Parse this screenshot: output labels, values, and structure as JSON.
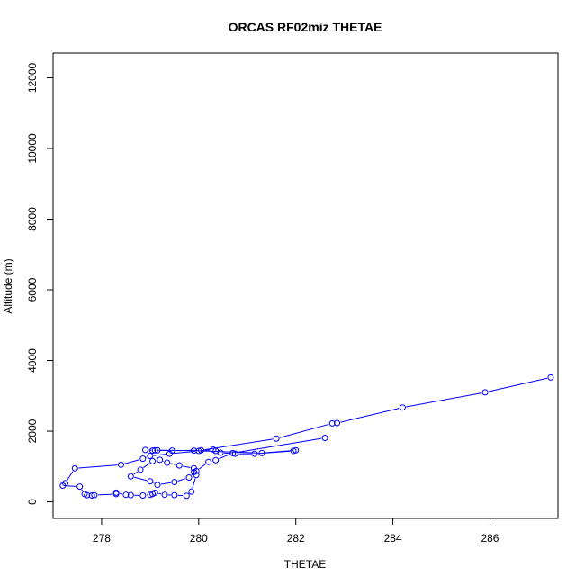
{
  "chart_data": {
    "type": "line",
    "title": "ORCAS RF02miz THETAE",
    "xlabel": "THETAE",
    "ylabel": "Altitude (m)",
    "xlim": [
      277.0,
      287.4
    ],
    "ylim": [
      -470,
      12700
    ],
    "xticks": [
      278,
      280,
      282,
      284,
      286
    ],
    "yticks": [
      0,
      2000,
      4000,
      6000,
      8000,
      10000,
      12000
    ],
    "grid": false,
    "markers": "open-circle",
    "series": [
      {
        "color": "#0000ff",
        "x": [
          287.25,
          285.9,
          284.2,
          282.85,
          282.75,
          281.6,
          280.05,
          279.45,
          279.1,
          278.9,
          279.05,
          279.15,
          279.9,
          281.3,
          282.0,
          281.95,
          281.15,
          280.75,
          280.45,
          280.35,
          280.3,
          280.0,
          279.4,
          279.0,
          278.85,
          278.4,
          277.45,
          277.25,
          277.2,
          277.55,
          277.65,
          277.7,
          277.8,
          277.85,
          278.3,
          278.3,
          278.5,
          278.6,
          278.85,
          279.0,
          279.05,
          279.1,
          279.3,
          279.5,
          279.75,
          279.85,
          279.95,
          279.9,
          279.9,
          279.6,
          279.35,
          279.2,
          279.05,
          278.8,
          278.6,
          279.0,
          279.15,
          279.5,
          279.8,
          279.95,
          280.2,
          280.35,
          280.7,
          282.6
        ],
        "y": [
          3520,
          3100,
          2670,
          2230,
          2220,
          1790,
          1460,
          1450,
          1460,
          1470,
          1450,
          1460,
          1450,
          1380,
          1460,
          1440,
          1360,
          1360,
          1390,
          1440,
          1480,
          1440,
          1360,
          1300,
          1220,
          1050,
          950,
          530,
          460,
          430,
          220,
          190,
          180,
          190,
          220,
          260,
          200,
          190,
          180,
          200,
          220,
          260,
          200,
          190,
          170,
          290,
          760,
          840,
          950,
          1030,
          1110,
          1190,
          1150,
          910,
          720,
          580,
          480,
          560,
          690,
          870,
          1130,
          1180,
          1380,
          1810
        ]
      }
    ]
  }
}
